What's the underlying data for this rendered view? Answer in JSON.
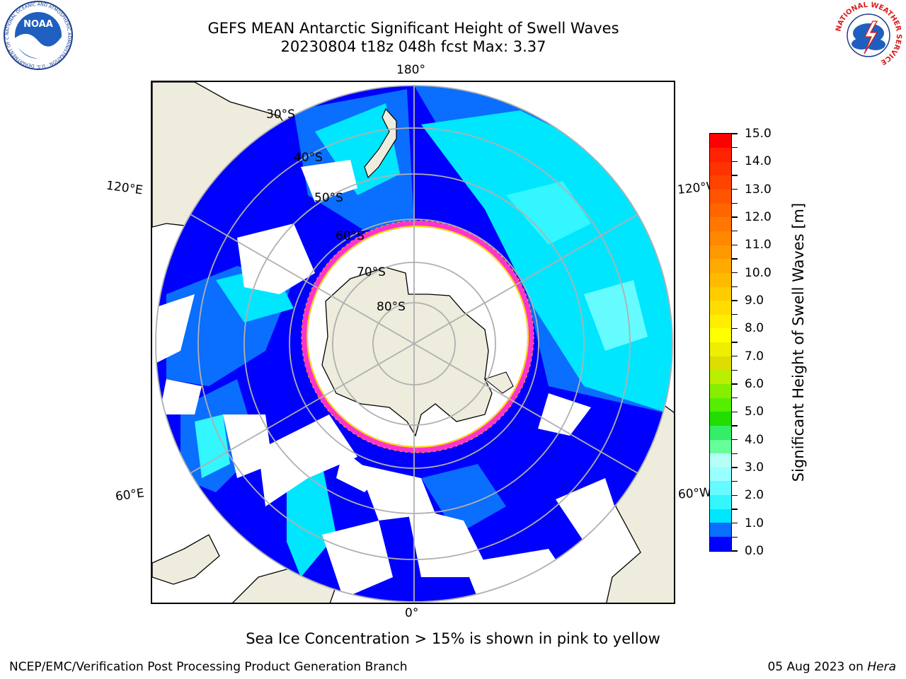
{
  "header": {
    "title_line1": "GEFS MEAN Antarctic Significant Height of Swell Waves",
    "title_line2": "20230804 t18z 048h fcst   Max: 3.37"
  },
  "map": {
    "projection": "south-polar-stereographic",
    "longitude_labels": [
      "180°",
      "120°E",
      "60°E",
      "0°",
      "60°W",
      "120°W"
    ],
    "latitude_labels": [
      "30°S",
      "40°S",
      "50°S",
      "60°S",
      "70°S",
      "80°S"
    ],
    "land_color": "#eeecdc",
    "ocean_no_swell_color": "#ffffff",
    "grid_color": "#b0b0b0"
  },
  "colorbar": {
    "title": "Significant Height of Swell Waves [m]",
    "ticks": [
      "0.0",
      "0.5",
      "1.0",
      "1.5",
      "2.0",
      "2.5",
      "3.0",
      "3.5",
      "4.0",
      "4.5",
      "5.0",
      "5.5",
      "6.0",
      "6.5",
      "7.0",
      "7.5",
      "8.0",
      "8.5",
      "9.0",
      "9.5",
      "10.0",
      "10.5",
      "11.0",
      "11.5",
      "12.0",
      "12.5",
      "13.0",
      "13.5",
      "14.0",
      "14.5",
      "15.0"
    ],
    "labels": [
      "0.0",
      "1.0",
      "2.0",
      "3.0",
      "4.0",
      "5.0",
      "6.0",
      "7.0",
      "8.0",
      "9.0",
      "10.0",
      "11.0",
      "12.0",
      "13.0",
      "14.0",
      "15.0"
    ],
    "colors": [
      "#0000ff",
      "#0a6eff",
      "#00e6ff",
      "#33f6ff",
      "#66fbff",
      "#99ffff",
      "#b3fff6",
      "#66ff99",
      "#33ee66",
      "#22dd00",
      "#55ee00",
      "#88ee00",
      "#bbee00",
      "#dddd00",
      "#eeee00",
      "#ffff00",
      "#ffee00",
      "#ffdd00",
      "#ffcc00",
      "#ffbb00",
      "#ffaa00",
      "#ff9900",
      "#ff8800",
      "#ff7700",
      "#ff6600",
      "#ff5500",
      "#ff4400",
      "#ff3300",
      "#ff2200",
      "#ff0000"
    ]
  },
  "subtitle": "Sea Ice Concentration > 15% is shown in pink to yellow",
  "footer": {
    "left": "NCEP/EMC/Verification Post Processing Product Generation Branch",
    "right_date": "05 Aug 2023 on ",
    "right_host": "Hera"
  },
  "logos": {
    "noaa_text": "NOAA",
    "noaa_ring": "NATIONAL OCEANIC AND ATMOSPHERIC ADMINISTRATION · U.S. DEPARTMENT OF COMMERCE",
    "nws_ring": "NATIONAL WEATHER SERVICE"
  }
}
